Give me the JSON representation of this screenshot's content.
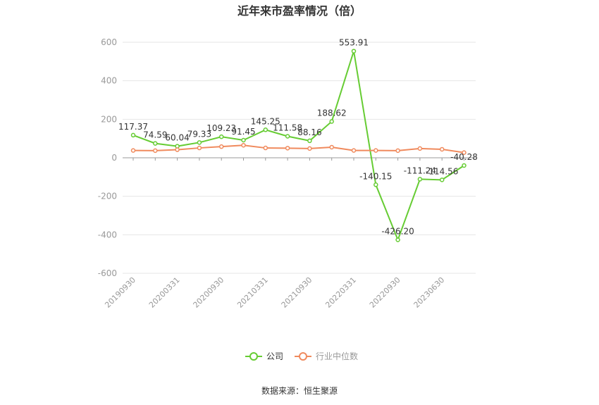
{
  "chart_data": {
    "type": "line",
    "title": "近年来市盈率情况（倍）",
    "source": "数据来源：恒生聚源",
    "ylim": [
      -600,
      600
    ],
    "yticks": [
      600,
      400,
      200,
      0,
      -200,
      -400,
      -600
    ],
    "x_tick_labels": [
      "20190930",
      "20200331",
      "20200930",
      "20210331",
      "20210930",
      "20220331",
      "20220930",
      "20230630"
    ],
    "n_points": 16,
    "legend_position": "bottom-center",
    "grid": true,
    "series": [
      {
        "name": "公司",
        "color": "#66cc33",
        "values": [
          117.37,
          74.59,
          60.04,
          79.33,
          109.23,
          91.45,
          145.25,
          111.58,
          88.16,
          188.62,
          553.91,
          -140.15,
          -426.2,
          -111.24,
          -114.56,
          -40.28
        ],
        "labels": [
          "117.37",
          "74.59",
          "60.04",
          "79.33",
          "109.23",
          "91.45",
          "145.25",
          "111.58",
          "88.16",
          "188.62",
          "553.91",
          "-140.15",
          "-426.20",
          "-111.24",
          "-114.56",
          "-40.28"
        ]
      },
      {
        "name": "行业中位数",
        "color": "#f08a5d",
        "values": [
          38,
          37,
          42,
          51,
          58,
          65,
          51,
          50,
          48,
          55,
          38,
          38,
          37,
          48,
          44,
          27
        ]
      }
    ]
  }
}
